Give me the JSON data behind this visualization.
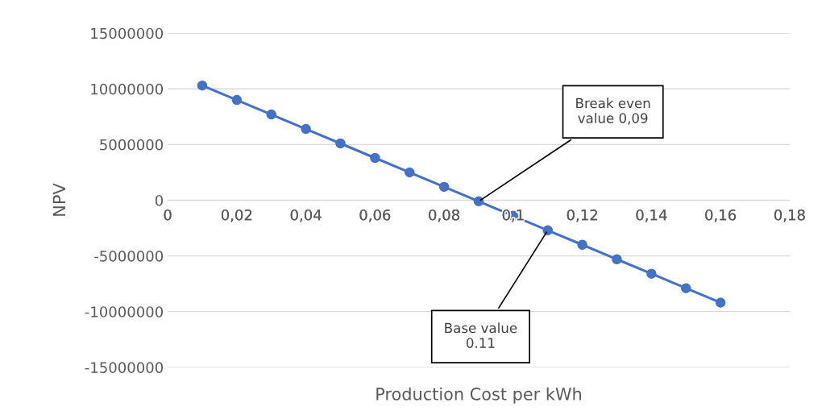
{
  "chart_data": {
    "type": "line",
    "xlabel": "Production Cost per kWh",
    "ylabel": "NPV",
    "x": [
      0.01,
      0.02,
      0.03,
      0.04,
      0.05,
      0.06,
      0.07,
      0.08,
      0.09,
      0.1,
      0.11,
      0.12,
      0.13,
      0.14,
      0.15,
      0.16
    ],
    "series": [
      {
        "color": "#4472c4",
        "values": [
          10300000,
          9000000,
          7700000,
          6400000,
          5100000,
          3800000,
          2500000,
          1200000,
          -100000,
          -1400000,
          -2700000,
          -4000000,
          -5300000,
          -6600000,
          -7900000,
          -9200000
        ]
      }
    ],
    "marker": "circle",
    "line_style": "solid",
    "grid": "y",
    "legend": false,
    "xlim": [
      0,
      0.18
    ],
    "xticks": [
      0,
      {
        "value": 0.02,
        "label": "0,02"
      },
      {
        "value": 0.04,
        "label": "0,04"
      },
      {
        "value": 0.06,
        "label": "0,06"
      },
      {
        "value": 0.08,
        "label": "0,08"
      },
      {
        "value": 0.1,
        "label": "0,1"
      },
      {
        "value": 0.12,
        "label": "0,12"
      },
      {
        "value": 0.14,
        "label": "0,14"
      },
      {
        "value": 0.16,
        "label": "0,16"
      },
      {
        "value": 0.18,
        "label": "0,18"
      }
    ],
    "ylim": [
      -15000000,
      15000000
    ],
    "yticks": [
      -15000000,
      -10000000,
      -5000000,
      0,
      5000000,
      10000000,
      15000000
    ],
    "annotations": [
      {
        "text": "Break even\nvalue 0,09",
        "x": 0.09,
        "y": -100000
      },
      {
        "text": "Base value\n0.11",
        "x": 0.11,
        "y": -2700000
      }
    ]
  }
}
